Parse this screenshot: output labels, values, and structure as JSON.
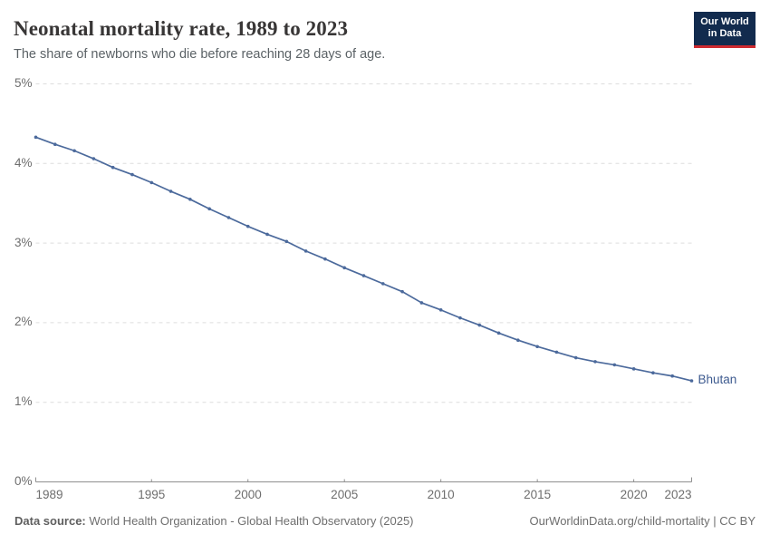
{
  "header": {
    "title": "Neonatal mortality rate, 1989 to 2023",
    "subtitle": "The share of newborns who die before reaching 28 days of age."
  },
  "logo": {
    "line1": "Our World",
    "line2": "in Data",
    "bg_color": "#122b4e",
    "bar_color": "#ce2a30"
  },
  "chart_data": {
    "type": "line",
    "title": "Neonatal mortality rate, 1989 to 2023",
    "x": [
      1989,
      1990,
      1991,
      1992,
      1993,
      1994,
      1995,
      1996,
      1997,
      1998,
      1999,
      2000,
      2001,
      2002,
      2003,
      2004,
      2005,
      2006,
      2007,
      2008,
      2009,
      2010,
      2011,
      2012,
      2013,
      2014,
      2015,
      2016,
      2017,
      2018,
      2019,
      2020,
      2021,
      2022,
      2023
    ],
    "series": [
      {
        "name": "Bhutan",
        "color": "#4c6a9c",
        "label_color": "#3d5a8f",
        "values": [
          4.33,
          4.24,
          4.16,
          4.06,
          3.95,
          3.86,
          3.76,
          3.65,
          3.55,
          3.43,
          3.32,
          3.21,
          3.11,
          3.02,
          2.9,
          2.8,
          2.69,
          2.59,
          2.49,
          2.39,
          2.25,
          2.16,
          2.06,
          1.97,
          1.87,
          1.78,
          1.7,
          1.63,
          1.56,
          1.51,
          1.47,
          1.42,
          1.37,
          1.33,
          1.27
        ]
      }
    ],
    "xlabel": "",
    "ylabel": "",
    "xlim": [
      1989,
      2023
    ],
    "ylim": [
      0,
      5
    ],
    "x_ticks": [
      1989,
      1995,
      2000,
      2005,
      2010,
      2015,
      2020,
      2023
    ],
    "y_tick_labels": [
      "0%",
      "1%",
      "2%",
      "3%",
      "4%",
      "5%"
    ],
    "grid": "horizontal-dashed",
    "legend_position": "end-of-line-label",
    "colors": {
      "grid": "#dedede",
      "axis": "#8f8f8f",
      "tick_text": "#6e6e6e"
    }
  },
  "footer": {
    "source_label": "Data source:",
    "source_text": " World Health Organization - Global Health Observatory (2025)",
    "link_text": "OurWorldinData.org/child-mortality | CC BY"
  }
}
